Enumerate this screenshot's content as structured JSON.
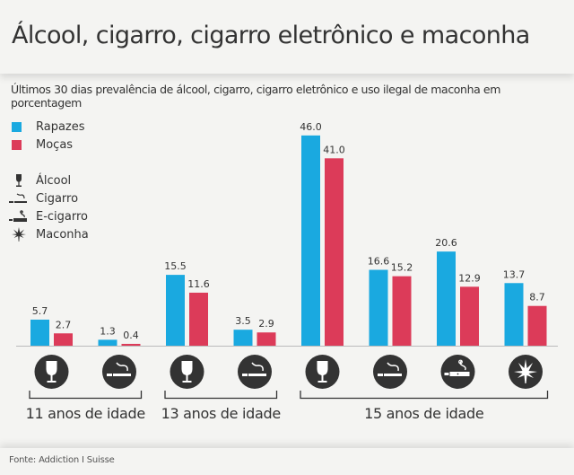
{
  "header": {
    "title": "Álcool, cigarro, cigarro eletrônico e maconha"
  },
  "subtitle": "Últimos 30 dias prevalência de álcool, cigarro, cigarro eletrônico e uso ilegal de maconha em porcentagem",
  "legend": {
    "series": [
      {
        "label": "Rapazes",
        "color": "#1aa9e0"
      },
      {
        "label": "Moças",
        "color": "#dc3b59"
      }
    ],
    "substances": [
      {
        "label": "Álcool",
        "icon": "wine-glass-icon"
      },
      {
        "label": "Cigarro",
        "icon": "cigarette-icon"
      },
      {
        "label": "E-cigarro",
        "icon": "e-cigarette-icon"
      },
      {
        "label": "Maconha",
        "icon": "cannabis-leaf-icon"
      }
    ]
  },
  "chart_data": {
    "type": "bar",
    "title": "Álcool, cigarro, cigarro eletrônico e maconha",
    "xlabel": "",
    "ylabel": "",
    "ylim": [
      0,
      46
    ],
    "grid": false,
    "legend_position": "top-left",
    "categories": [
      {
        "group": "11 anos de idade",
        "substance": "Álcool",
        "icon": "wine-glass-icon"
      },
      {
        "group": "11 anos de idade",
        "substance": "Cigarro",
        "icon": "cigarette-icon"
      },
      {
        "group": "13 anos de idade",
        "substance": "Álcool",
        "icon": "wine-glass-icon"
      },
      {
        "group": "13 anos de idade",
        "substance": "Cigarro",
        "icon": "cigarette-icon"
      },
      {
        "group": "15 anos de idade",
        "substance": "Álcool",
        "icon": "wine-glass-icon"
      },
      {
        "group": "15 anos de idade",
        "substance": "Cigarro",
        "icon": "cigarette-icon"
      },
      {
        "group": "15 anos de idade",
        "substance": "E-cigarro",
        "icon": "e-cigarette-icon"
      },
      {
        "group": "15 anos de idade",
        "substance": "Maconha",
        "icon": "cannabis-leaf-icon"
      }
    ],
    "series": [
      {
        "name": "Rapazes",
        "color": "#1aa9e0",
        "values": [
          5.7,
          1.3,
          15.5,
          3.5,
          46.0,
          16.6,
          20.6,
          13.7
        ],
        "labels": [
          "5.7",
          "1.3",
          "15.5",
          "3.5",
          "46.0",
          "16.6",
          "20.6",
          "13.7"
        ]
      },
      {
        "name": "Moças",
        "color": "#dc3b59",
        "values": [
          2.7,
          0.4,
          11.6,
          2.9,
          41.0,
          15.2,
          12.9,
          8.7
        ],
        "labels": [
          "2.7",
          "0.4",
          "11.6",
          "2.9",
          "41.0",
          "15.2",
          "12.9",
          "8.7"
        ]
      }
    ],
    "groups": [
      {
        "label": "11 anos de idade",
        "categories": [
          0,
          1
        ]
      },
      {
        "label": "13 anos de idade",
        "categories": [
          2,
          3
        ]
      },
      {
        "label": "15 anos de idade",
        "categories": [
          4,
          5,
          6,
          7
        ]
      }
    ]
  },
  "footer": {
    "source": "Fonte: Addiction I Suisse"
  },
  "colors": {
    "icon_circle": "#333333",
    "axis": "#bbbbbb",
    "bracket": "#333333",
    "background": "#f4f4f2"
  }
}
